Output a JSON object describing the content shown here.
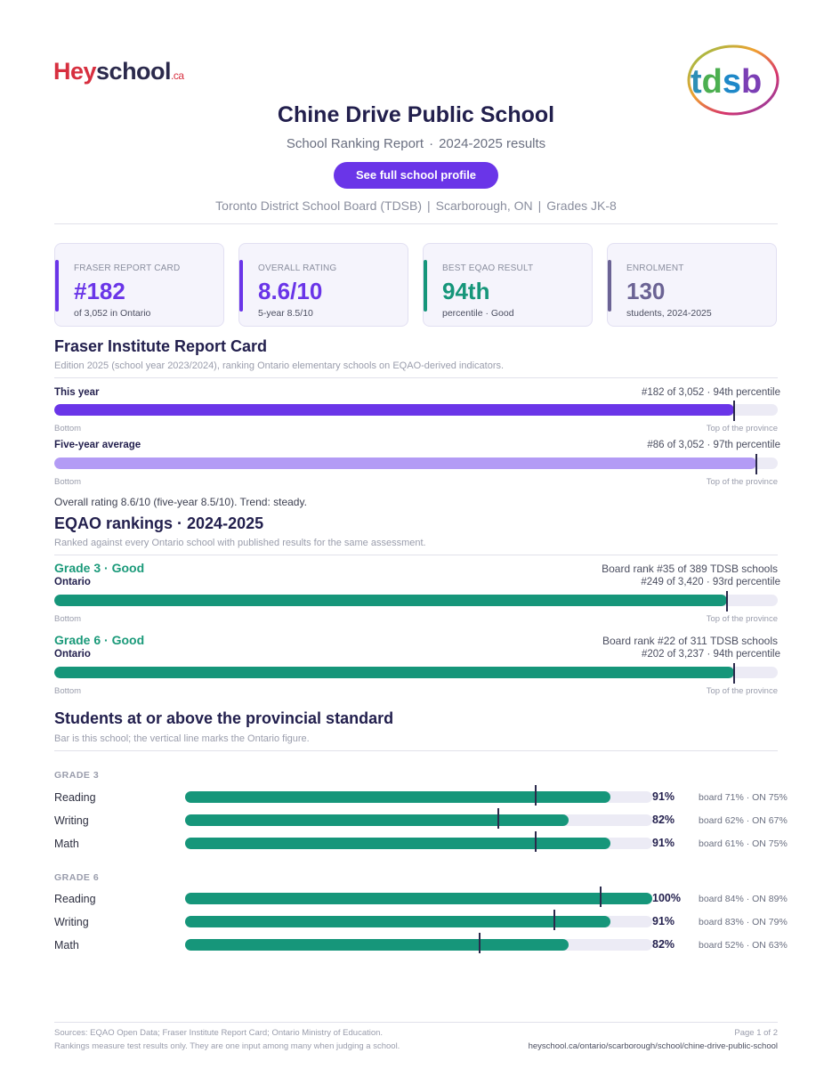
{
  "header": {
    "logo_text_1": "Hey",
    "logo_text_2": "school",
    "logo_suffix": ".ca",
    "board_logo_text": "tdsb",
    "title": "Chine Drive Public School",
    "subtitle_left": "School Ranking Report",
    "subtitle_sep": "·",
    "subtitle_right": "2024-2025 results",
    "profile_button": "See full school profile",
    "meta_board": "Toronto District School Board (TDSB)",
    "meta_sep": "|",
    "meta_city": "Scarborough, ON",
    "meta_grades": "Grades JK-8"
  },
  "cards": [
    {
      "label": "FRASER REPORT CARD",
      "value": "#182",
      "sub": "of 3,052 in Ontario",
      "color": "#6a35e8"
    },
    {
      "label": "OVERALL RATING",
      "value": "8.6/10",
      "sub": "5-year 8.5/10",
      "color": "#6a35e8"
    },
    {
      "label": "BEST EQAO RESULT",
      "value": "94th",
      "sub": "percentile  ·  Good",
      "color": "#16967a"
    },
    {
      "label": "ENROLMENT",
      "value": "130",
      "sub": "students, 2024-2025",
      "color": "#6b6394"
    }
  ],
  "fraser": {
    "title": "Fraser Institute Report Card",
    "note": "Edition 2025 (school year 2023/2024), ranking Ontario elementary schools on EQAO-derived indicators.",
    "rows": [
      {
        "label": "This year",
        "rank": "#182 of 3,052  ·  94th percentile",
        "percentile": 94,
        "color": "#6a35e8"
      },
      {
        "label": "Five-year average",
        "rank": "#86 of 3,052  ·  97th percentile",
        "percentile": 97,
        "color": "#b39bf5"
      }
    ],
    "axis_left": "Bottom",
    "axis_right": "Top of the province",
    "summary": "Overall rating 8.6/10 (five-year 8.5/10). Trend: steady."
  },
  "eqao": {
    "title": "EQAO rankings  ·  2024-2025",
    "note": "Ranked against every Ontario school with published results for the same assessment.",
    "grades": [
      {
        "heading": "Grade 3  ·  Good",
        "board_rank": "Board rank #35 of 389 TDSB schools",
        "scope": "Ontario",
        "rank": "#249 of 3,420  ·  93rd percentile",
        "percentile": 93
      },
      {
        "heading": "Grade 6  ·  Good",
        "board_rank": "Board rank #22 of 311 TDSB schools",
        "scope": "Ontario",
        "rank": "#202 of 3,237  ·  94th percentile",
        "percentile": 94
      }
    ],
    "axis_left": "Bottom",
    "axis_right": "Top of the province"
  },
  "standard": {
    "title": "Students at or above the provincial standard",
    "note": "Bar is this school; the vertical line marks the Ontario figure.",
    "grades": [
      {
        "label": "GRADE 3",
        "rows": [
          {
            "subject": "Reading",
            "school": 91,
            "board": 71,
            "ontario": 75,
            "pct": "91%",
            "cmp": "board 71%  ·  ON 75%"
          },
          {
            "subject": "Writing",
            "school": 82,
            "board": 62,
            "ontario": 67,
            "pct": "82%",
            "cmp": "board 62%  ·  ON 67%"
          },
          {
            "subject": "Math",
            "school": 91,
            "board": 61,
            "ontario": 75,
            "pct": "91%",
            "cmp": "board 61%  ·  ON 75%"
          }
        ]
      },
      {
        "label": "GRADE 6",
        "rows": [
          {
            "subject": "Reading",
            "school": 100,
            "board": 84,
            "ontario": 89,
            "pct": "100%",
            "cmp": "board 84%  ·  ON 89%"
          },
          {
            "subject": "Writing",
            "school": 91,
            "board": 83,
            "ontario": 79,
            "pct": "91%",
            "cmp": "board 83%  ·  ON 79%"
          },
          {
            "subject": "Math",
            "school": 82,
            "board": 52,
            "ontario": 63,
            "pct": "82%",
            "cmp": "board 52%  ·  ON 63%"
          }
        ]
      }
    ]
  },
  "footer": {
    "sources": "Sources: EQAO Open Data; Fraser Institute Report Card; Ontario Ministry of Education.",
    "disclaimer": "Rankings measure test results only. They are one input among many when judging a school.",
    "page": "Page 1 of 2",
    "url": "heyschool.ca/ontario/scarborough/school/chine-drive-public-school"
  }
}
